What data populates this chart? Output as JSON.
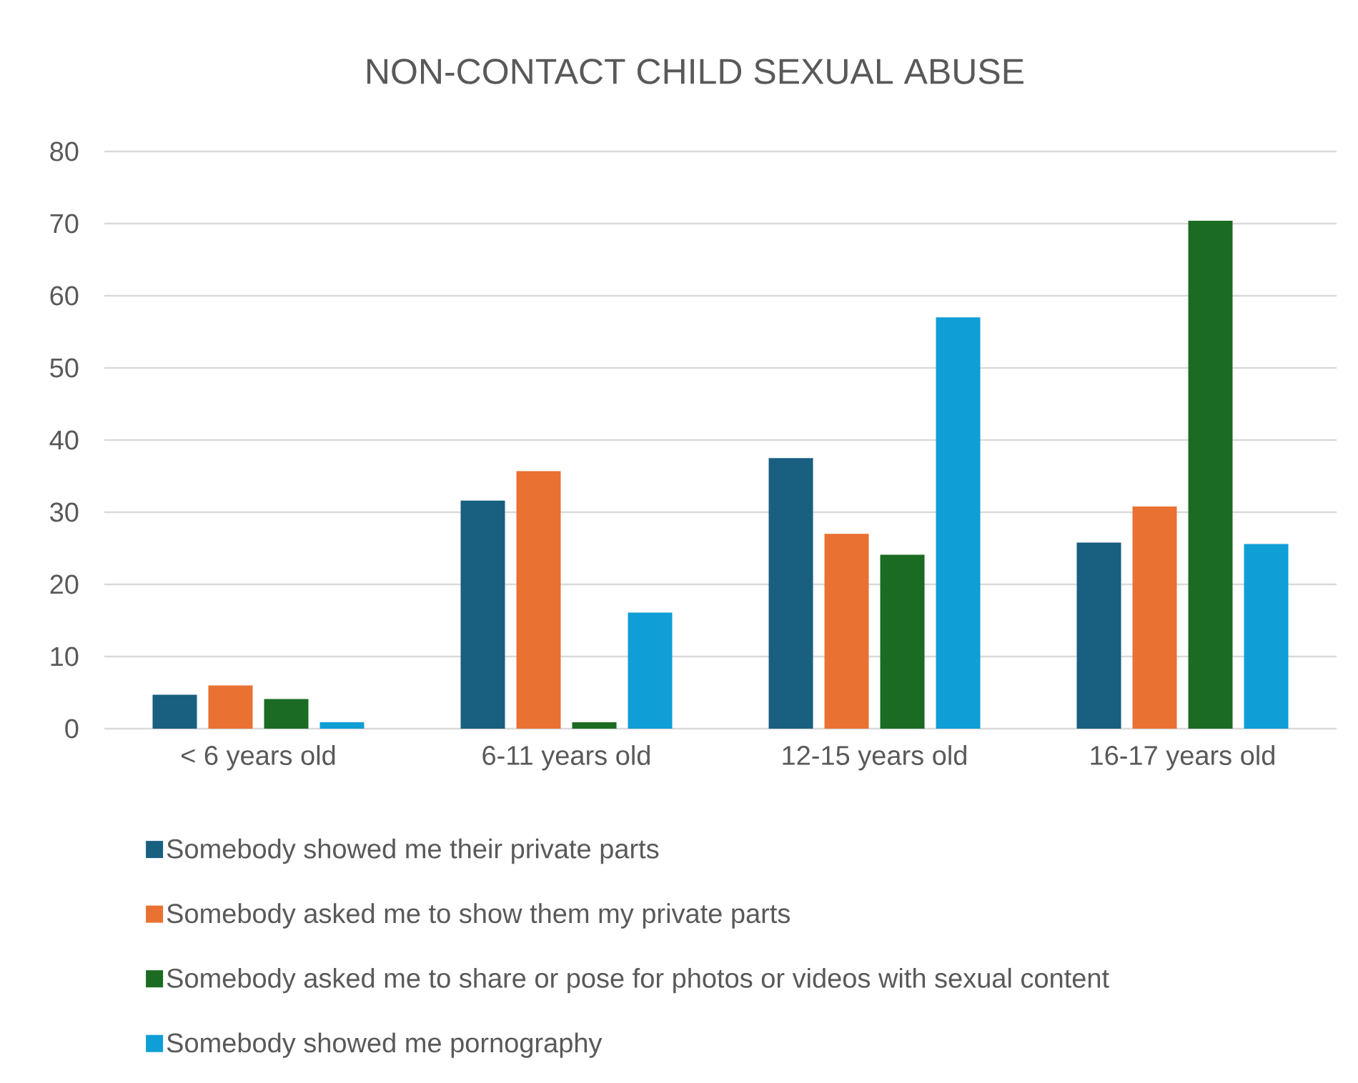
{
  "chart_data": {
    "type": "bar",
    "title": "NON-CONTACT CHILD SEXUAL ABUSE",
    "categories": [
      "< 6 years old",
      "6-11 years old",
      "12-15 years old",
      "16-17 years old"
    ],
    "series": [
      {
        "name": "Somebody showed me their private parts",
        "color": "#185f80",
        "values": [
          4.7,
          31.6,
          37.5,
          25.8
        ]
      },
      {
        "name": "Somebody asked me to show them my private parts",
        "color": "#e97132",
        "values": [
          6.0,
          35.7,
          27.0,
          30.8
        ]
      },
      {
        "name": "Somebody asked me to share or pose for photos or videos with sexual content",
        "color": "#1b6b23",
        "values": [
          4.1,
          0.9,
          24.1,
          70.4
        ]
      },
      {
        "name": "Somebody showed me pornography",
        "color": "#0f9ed5",
        "values": [
          0.9,
          16.1,
          57.0,
          25.6
        ]
      }
    ],
    "ylim": [
      0,
      80
    ],
    "yticks": [
      0,
      10,
      20,
      30,
      40,
      50,
      60,
      70,
      80
    ],
    "grid": "y",
    "legend": "bottom"
  }
}
